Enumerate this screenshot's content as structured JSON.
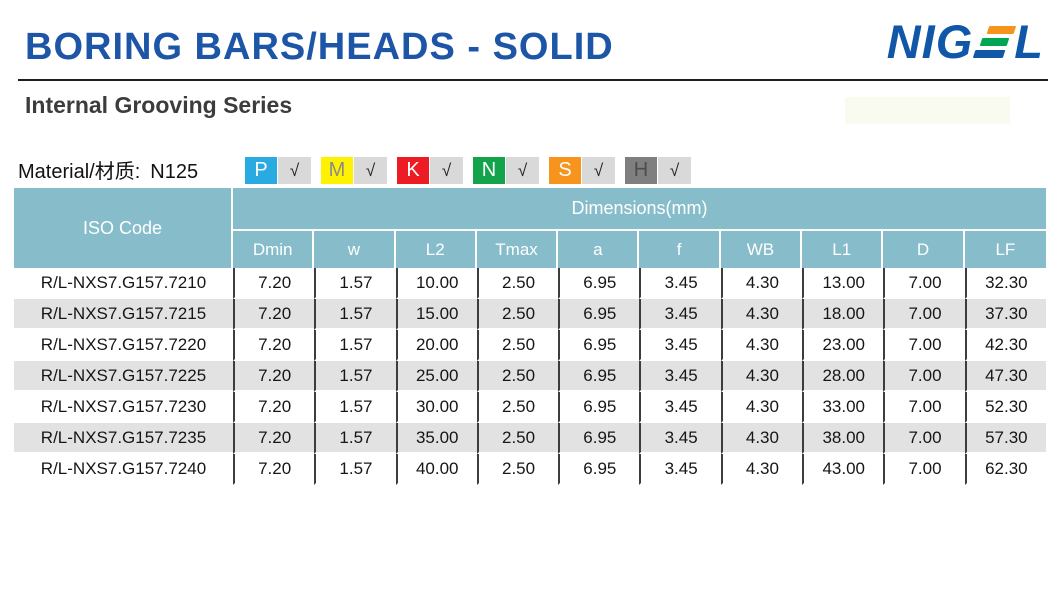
{
  "header": {
    "title": "BORING BARS/HEADS - SOLID",
    "subtitle": "Internal Grooving Series",
    "logo": {
      "name": "NIGEL",
      "text_before_e": "NIG",
      "text_after_e": "L",
      "blue": "#1157a8",
      "e_bar_colors": [
        "#f7941d",
        "#00a651",
        "#1157a8"
      ]
    }
  },
  "material": {
    "label": "Material/材质:",
    "value": "N125",
    "check_mark": "√",
    "grades": [
      {
        "letter": "P",
        "bg": "#29abe2",
        "fg": "#ffffff"
      },
      {
        "letter": "M",
        "bg": "#fff200",
        "fg": "#8a8a8a"
      },
      {
        "letter": "K",
        "bg": "#ed1c24",
        "fg": "#ffffff"
      },
      {
        "letter": "N",
        "bg": "#12a34b",
        "fg": "#ffffff"
      },
      {
        "letter": "S",
        "bg": "#f7941e",
        "fg": "#ffffff"
      },
      {
        "letter": "H",
        "bg": "#7f7f7f",
        "fg": "#4d4d4d"
      }
    ]
  },
  "table": {
    "iso_header": "ISO Code",
    "dimensions_header": "Dimensions(mm)",
    "columns": [
      "Dmin",
      "w",
      "L2",
      "Tmax",
      "a",
      "f",
      "WB",
      "L1",
      "D",
      "LF"
    ],
    "rows": [
      {
        "iso": "R/L-NXS7.G157.7210",
        "values": [
          "7.20",
          "1.57",
          "10.00",
          "2.50",
          "6.95",
          "3.45",
          "4.30",
          "13.00",
          "7.00",
          "32.30"
        ]
      },
      {
        "iso": "R/L-NXS7.G157.7215",
        "values": [
          "7.20",
          "1.57",
          "15.00",
          "2.50",
          "6.95",
          "3.45",
          "4.30",
          "18.00",
          "7.00",
          "37.30"
        ]
      },
      {
        "iso": "R/L-NXS7.G157.7220",
        "values": [
          "7.20",
          "1.57",
          "20.00",
          "2.50",
          "6.95",
          "3.45",
          "4.30",
          "23.00",
          "7.00",
          "42.30"
        ]
      },
      {
        "iso": "R/L-NXS7.G157.7225",
        "values": [
          "7.20",
          "1.57",
          "25.00",
          "2.50",
          "6.95",
          "3.45",
          "4.30",
          "28.00",
          "7.00",
          "47.30"
        ]
      },
      {
        "iso": "R/L-NXS7.G157.7230",
        "values": [
          "7.20",
          "1.57",
          "30.00",
          "2.50",
          "6.95",
          "3.45",
          "4.30",
          "33.00",
          "7.00",
          "52.30"
        ]
      },
      {
        "iso": "R/L-NXS7.G157.7235",
        "values": [
          "7.20",
          "1.57",
          "35.00",
          "2.50",
          "6.95",
          "3.45",
          "4.30",
          "38.00",
          "7.00",
          "57.30"
        ]
      },
      {
        "iso": "R/L-NXS7.G157.7240",
        "values": [
          "7.20",
          "1.57",
          "40.00",
          "2.50",
          "6.95",
          "3.45",
          "4.30",
          "43.00",
          "7.00",
          "62.30"
        ]
      }
    ]
  },
  "colors": {
    "title_blue": "#1d55a7",
    "header_teal": "#87bdca",
    "alt_row": "#e2e2e2",
    "divider": "#3d3d3d"
  }
}
